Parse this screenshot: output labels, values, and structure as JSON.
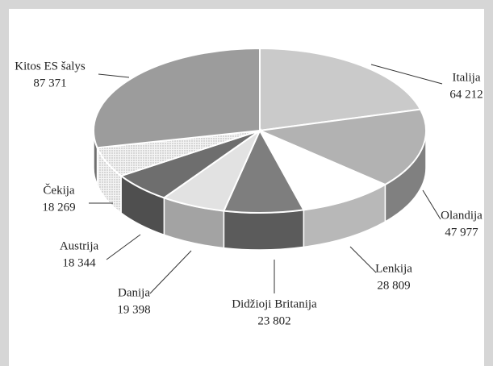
{
  "chart_data": {
    "type": "pie3d",
    "categories": [
      "Italija",
      "Olandija",
      "Lenkija",
      "Didžioji Britanija",
      "Danija",
      "Austrija",
      "Čekija",
      "Kitos ES šalys"
    ],
    "values": [
      64212,
      47977,
      28809,
      23802,
      19398,
      18344,
      18269,
      87371
    ],
    "value_labels": [
      "64 212",
      "47 977",
      "28 809",
      "23 802",
      "19 398",
      "18 344",
      "18 269",
      "87 371"
    ],
    "colors": [
      "#cacaca",
      "#b2b2b2",
      "#ffffff",
      "#7e7e7e",
      "#e2e2e2",
      "#6e6e6e",
      "#eeeeee",
      "#9c9c9c"
    ]
  }
}
